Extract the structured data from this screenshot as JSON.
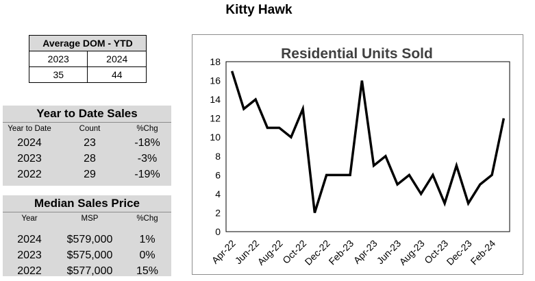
{
  "page": {
    "title": "Kitty Hawk"
  },
  "dom": {
    "title": "Average DOM - YTD",
    "years": [
      "2023",
      "2024"
    ],
    "values": [
      "35",
      "44"
    ]
  },
  "ytd_sales": {
    "title": "Year to Date Sales",
    "headers": [
      "Year to Date",
      "Count",
      "%Chg"
    ],
    "rows": [
      {
        "year": "2024",
        "count": "23",
        "chg": "-18%"
      },
      {
        "year": "2023",
        "count": "28",
        "chg": "-3%"
      },
      {
        "year": "2022",
        "count": "29",
        "chg": "-19%"
      }
    ]
  },
  "median_price": {
    "title": "Median Sales Price",
    "headers": [
      "Year",
      "MSP",
      "%Chg"
    ],
    "rows": [
      {
        "year": "2024",
        "msp": "$579,000",
        "chg": "1%"
      },
      {
        "year": "2023",
        "msp": "$575,000",
        "chg": "0%"
      },
      {
        "year": "2022",
        "msp": "$577,000",
        "chg": "15%"
      }
    ]
  },
  "chart_data": {
    "type": "line",
    "title": "Residential Units Sold",
    "xlabel": "",
    "ylabel": "",
    "ylim": [
      0,
      18
    ],
    "yticks": [
      "0",
      "2",
      "4",
      "6",
      "8",
      "10",
      "12",
      "14",
      "16",
      "18"
    ],
    "x_tick_labels": [
      "Apr-22",
      "Jun-22",
      "Aug-22",
      "Oct-22",
      "Dec-22",
      "Feb-23",
      "Apr-23",
      "Jun-23",
      "Aug-23",
      "Oct-23",
      "Dec-23",
      "Feb-24"
    ],
    "x": [
      "Apr-22",
      "May-22",
      "Jun-22",
      "Jul-22",
      "Aug-22",
      "Sep-22",
      "Oct-22",
      "Nov-22",
      "Dec-22",
      "Jan-23",
      "Feb-23",
      "Mar-23",
      "Apr-23",
      "May-23",
      "Jun-23",
      "Jul-23",
      "Aug-23",
      "Sep-23",
      "Oct-23",
      "Nov-23",
      "Dec-23",
      "Jan-24",
      "Feb-24",
      "Mar-24"
    ],
    "series": [
      {
        "values": [
          17,
          13,
          14,
          11,
          11,
          10,
          13,
          2,
          6,
          6,
          6,
          16,
          7,
          8,
          5,
          6,
          4,
          6,
          3,
          7,
          3,
          5,
          6,
          12
        ],
        "color": "#000000"
      }
    ],
    "grid": false,
    "legend": "none"
  }
}
